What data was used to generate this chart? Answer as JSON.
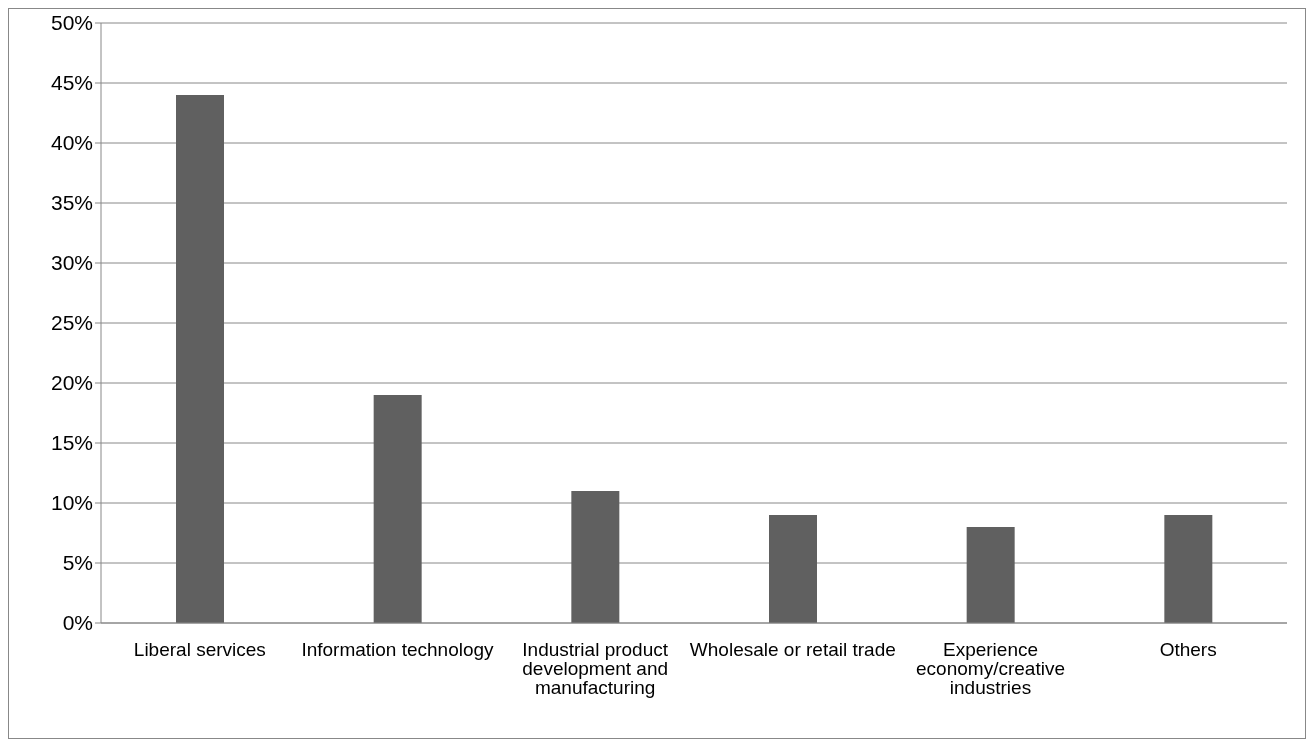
{
  "chart_data": {
    "type": "bar",
    "categories": [
      "Liberal services",
      "Information technology",
      "Industrial product development and manufacturing",
      "Wholesale or retail trade",
      "Experience economy/creative industries",
      "Others"
    ],
    "values": [
      44,
      19,
      11,
      9,
      8,
      9
    ],
    "color": "#606060",
    "ylim": [
      0,
      50
    ],
    "yticks": [
      {
        "value": 0,
        "label": "0%"
      },
      {
        "value": 5,
        "label": "5%"
      },
      {
        "value": 10,
        "label": "10%"
      },
      {
        "value": 15,
        "label": "15%"
      },
      {
        "value": 20,
        "label": "20%"
      },
      {
        "value": 25,
        "label": "25%"
      },
      {
        "value": 30,
        "label": "30%"
      },
      {
        "value": 35,
        "label": "35%"
      },
      {
        "value": 40,
        "label": "40%"
      },
      {
        "value": 45,
        "label": "45%"
      },
      {
        "value": 50,
        "label": "50%"
      }
    ],
    "grid": "y",
    "legend": false
  }
}
